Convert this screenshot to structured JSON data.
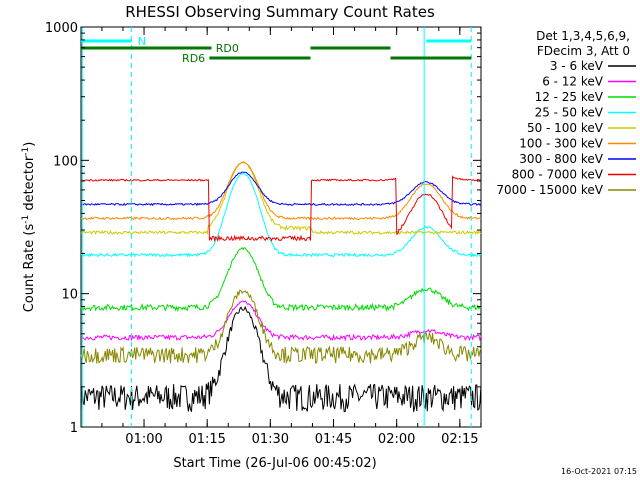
{
  "chart_data": {
    "type": "line",
    "title": "RHESSI Observing Summary Count Rates",
    "xlabel": "Start Time (26-Jul-06 00:45:02)",
    "ylabel_main": "Count Rate (s",
    "ylabel_sup1": "-1",
    "ylabel_mid": " detector",
    "ylabel_sup2": "-1",
    "ylabel_end": ")",
    "yscale": "log",
    "ylim": [
      1,
      1000
    ],
    "xlim_minutes": [
      0,
      95
    ],
    "y_ticks": [
      {
        "value": 1,
        "label": "1"
      },
      {
        "value": 10,
        "label": "10"
      },
      {
        "value": 100,
        "label": "100"
      },
      {
        "value": 1000,
        "label": "1000"
      }
    ],
    "x_ticks": [
      {
        "minute": 14.97,
        "label": "01:00"
      },
      {
        "minute": 29.97,
        "label": "01:15"
      },
      {
        "minute": 44.97,
        "label": "01:30"
      },
      {
        "minute": 59.97,
        "label": "01:45"
      },
      {
        "minute": 74.97,
        "label": "02:00"
      },
      {
        "minute": 89.97,
        "label": "02:15"
      }
    ],
    "legend_header": [
      "Det 1,3,4,5,6,9,",
      "FDecim 3, Att 0"
    ],
    "series": [
      {
        "name": "3 - 6 keV",
        "color": "#000000"
      },
      {
        "name": "6 - 12 keV",
        "color": "#ff00ff"
      },
      {
        "name": "12 - 25 keV",
        "color": "#00dd00"
      },
      {
        "name": "25 - 50 keV",
        "color": "#00ffff"
      },
      {
        "name": "50 - 100 keV",
        "color": "#cccc00"
      },
      {
        "name": "100 - 300 keV",
        "color": "#ff8800"
      },
      {
        "name": "300 - 800 keV",
        "color": "#0000ff"
      },
      {
        "name": "800 - 7000 keV",
        "color": "#ee0000"
      },
      {
        "name": "7000 - 15000 keV",
        "color": "#888800"
      }
    ],
    "flags": [
      {
        "label": "N",
        "color": "#00ffff"
      },
      {
        "label": "RD0",
        "color": "#007700"
      },
      {
        "label": "RD6",
        "color": "#007700"
      }
    ],
    "timestamp": "16-Oct-2021 07:15"
  }
}
